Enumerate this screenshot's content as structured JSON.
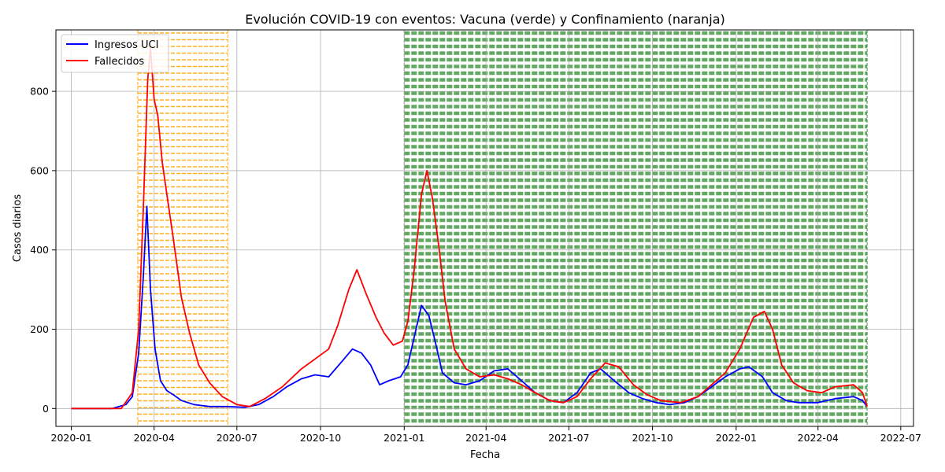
{
  "chart_data": {
    "type": "line",
    "title": "Evolución COVID-19 con eventos: Vacuna (verde) y Confinamiento (naranja)",
    "xlabel": "Fecha",
    "ylabel": "Casos diarios",
    "xlim": [
      "2019-12-15",
      "2022-07-15"
    ],
    "ylim": [
      -45,
      955
    ],
    "grid": true,
    "legend_position": "top-left",
    "x_ticks": [
      "2020-01",
      "2020-04",
      "2020-07",
      "2020-10",
      "2021-01",
      "2021-04",
      "2021-07",
      "2021-10",
      "2022-01",
      "2022-04",
      "2022-07"
    ],
    "y_ticks": [
      0,
      200,
      400,
      600,
      800
    ],
    "events": [
      {
        "label": "Confinamiento",
        "start": "2020-03-14",
        "end": "2020-06-21",
        "color": "#ffa500"
      },
      {
        "label": "Vacuna",
        "start": "2021-01-01",
        "end": "2022-05-25",
        "color": "#2e8b2e"
      }
    ],
    "series": [
      {
        "name": "Ingresos UCI",
        "color": "#0000ff",
        "points": [
          [
            "2020-01-01",
            0
          ],
          [
            "2020-02-15",
            0
          ],
          [
            "2020-03-01",
            10
          ],
          [
            "2020-03-08",
            30
          ],
          [
            "2020-03-15",
            140
          ],
          [
            "2020-03-20",
            330
          ],
          [
            "2020-03-24",
            510
          ],
          [
            "2020-03-28",
            300
          ],
          [
            "2020-04-02",
            150
          ],
          [
            "2020-04-08",
            70
          ],
          [
            "2020-04-15",
            45
          ],
          [
            "2020-04-22",
            35
          ],
          [
            "2020-05-01",
            20
          ],
          [
            "2020-05-15",
            10
          ],
          [
            "2020-06-01",
            5
          ],
          [
            "2020-06-20",
            5
          ],
          [
            "2020-07-10",
            3
          ],
          [
            "2020-07-25",
            10
          ],
          [
            "2020-08-10",
            30
          ],
          [
            "2020-08-25",
            55
          ],
          [
            "2020-09-10",
            75
          ],
          [
            "2020-09-25",
            85
          ],
          [
            "2020-10-10",
            80
          ],
          [
            "2020-10-25",
            120
          ],
          [
            "2020-11-05",
            150
          ],
          [
            "2020-11-15",
            140
          ],
          [
            "2020-11-25",
            110
          ],
          [
            "2020-12-05",
            60
          ],
          [
            "2020-12-15",
            70
          ],
          [
            "2020-12-28",
            80
          ],
          [
            "2021-01-05",
            110
          ],
          [
            "2021-01-12",
            180
          ],
          [
            "2021-01-20",
            260
          ],
          [
            "2021-01-28",
            235
          ],
          [
            "2021-02-05",
            160
          ],
          [
            "2021-02-12",
            90
          ],
          [
            "2021-02-25",
            65
          ],
          [
            "2021-03-10",
            60
          ],
          [
            "2021-03-25",
            70
          ],
          [
            "2021-04-10",
            95
          ],
          [
            "2021-04-25",
            100
          ],
          [
            "2021-05-10",
            70
          ],
          [
            "2021-05-25",
            40
          ],
          [
            "2021-06-10",
            20
          ],
          [
            "2021-06-25",
            15
          ],
          [
            "2021-07-10",
            40
          ],
          [
            "2021-07-25",
            90
          ],
          [
            "2021-08-05",
            100
          ],
          [
            "2021-08-20",
            70
          ],
          [
            "2021-09-05",
            40
          ],
          [
            "2021-09-20",
            25
          ],
          [
            "2021-10-05",
            15
          ],
          [
            "2021-10-20",
            10
          ],
          [
            "2021-11-05",
            15
          ],
          [
            "2021-11-20",
            30
          ],
          [
            "2021-12-05",
            55
          ],
          [
            "2021-12-20",
            80
          ],
          [
            "2022-01-05",
            100
          ],
          [
            "2022-01-15",
            105
          ],
          [
            "2022-01-30",
            80
          ],
          [
            "2022-02-10",
            40
          ],
          [
            "2022-02-25",
            20
          ],
          [
            "2022-03-10",
            15
          ],
          [
            "2022-04-01",
            15
          ],
          [
            "2022-04-20",
            25
          ],
          [
            "2022-05-10",
            30
          ],
          [
            "2022-05-20",
            20
          ],
          [
            "2022-05-25",
            5
          ]
        ]
      },
      {
        "name": "Fallecidos",
        "color": "#ff0000",
        "points": [
          [
            "2020-01-01",
            0
          ],
          [
            "2020-02-25",
            0
          ],
          [
            "2020-03-08",
            40
          ],
          [
            "2020-03-15",
            200
          ],
          [
            "2020-03-20",
            500
          ],
          [
            "2020-03-25",
            830
          ],
          [
            "2020-03-28",
            910
          ],
          [
            "2020-04-01",
            780
          ],
          [
            "2020-04-05",
            740
          ],
          [
            "2020-04-10",
            620
          ],
          [
            "2020-04-15",
            540
          ],
          [
            "2020-04-22",
            430
          ],
          [
            "2020-05-01",
            280
          ],
          [
            "2020-05-10",
            190
          ],
          [
            "2020-05-20",
            110
          ],
          [
            "2020-06-01",
            65
          ],
          [
            "2020-06-15",
            30
          ],
          [
            "2020-07-01",
            10
          ],
          [
            "2020-07-15",
            5
          ],
          [
            "2020-08-01",
            25
          ],
          [
            "2020-08-20",
            55
          ],
          [
            "2020-09-10",
            100
          ],
          [
            "2020-09-25",
            125
          ],
          [
            "2020-10-10",
            150
          ],
          [
            "2020-10-20",
            210
          ],
          [
            "2020-11-01",
            300
          ],
          [
            "2020-11-10",
            350
          ],
          [
            "2020-11-20",
            290
          ],
          [
            "2020-12-01",
            230
          ],
          [
            "2020-12-10",
            190
          ],
          [
            "2020-12-20",
            160
          ],
          [
            "2020-12-30",
            170
          ],
          [
            "2021-01-05",
            220
          ],
          [
            "2021-01-12",
            350
          ],
          [
            "2021-01-20",
            540
          ],
          [
            "2021-01-26",
            600
          ],
          [
            "2021-02-01",
            530
          ],
          [
            "2021-02-08",
            410
          ],
          [
            "2021-02-15",
            270
          ],
          [
            "2021-02-25",
            150
          ],
          [
            "2021-03-10",
            100
          ],
          [
            "2021-03-25",
            80
          ],
          [
            "2021-04-10",
            85
          ],
          [
            "2021-04-25",
            75
          ],
          [
            "2021-05-10",
            60
          ],
          [
            "2021-05-25",
            40
          ],
          [
            "2021-06-10",
            20
          ],
          [
            "2021-06-25",
            15
          ],
          [
            "2021-07-10",
            30
          ],
          [
            "2021-07-25",
            75
          ],
          [
            "2021-08-10",
            115
          ],
          [
            "2021-08-25",
            105
          ],
          [
            "2021-09-10",
            60
          ],
          [
            "2021-09-25",
            35
          ],
          [
            "2021-10-10",
            20
          ],
          [
            "2021-11-01",
            15
          ],
          [
            "2021-11-20",
            30
          ],
          [
            "2021-12-05",
            60
          ],
          [
            "2021-12-20",
            90
          ],
          [
            "2022-01-05",
            150
          ],
          [
            "2022-01-20",
            230
          ],
          [
            "2022-02-01",
            245
          ],
          [
            "2022-02-10",
            200
          ],
          [
            "2022-02-20",
            110
          ],
          [
            "2022-03-05",
            65
          ],
          [
            "2022-03-20",
            45
          ],
          [
            "2022-04-05",
            40
          ],
          [
            "2022-04-20",
            55
          ],
          [
            "2022-05-10",
            60
          ],
          [
            "2022-05-20",
            40
          ],
          [
            "2022-05-25",
            5
          ]
        ]
      }
    ]
  }
}
